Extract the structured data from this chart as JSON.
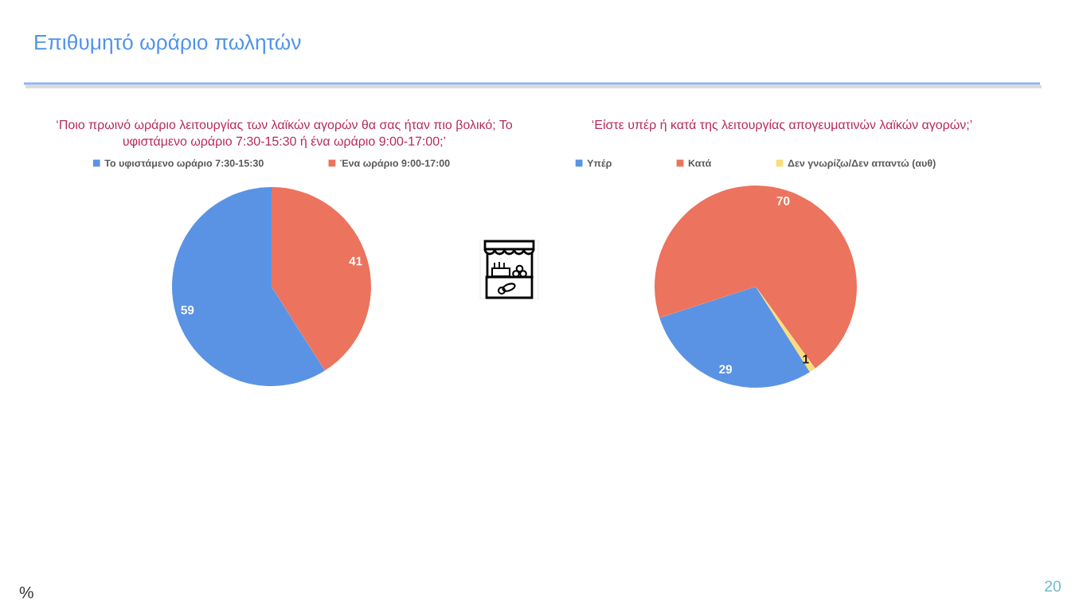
{
  "chart_data": [
    {
      "type": "pie",
      "title": "‘Ποιο πρωινό ωράριο λειτουργίας των λαϊκών αγορών θα σας ήταν πιο βολικό; Το\nυφιστάμενο ωράριο 7:30-15:30 ή ένα ωράριο 9:00-17:00;’",
      "categories": [
        "Το υφιστάμενο ωράριο 7:30-15:30",
        "Ένα ωράριο 9:00-17:00"
      ],
      "values": [
        59,
        41
      ],
      "colors": [
        "#5b93e4",
        "#ec735e"
      ],
      "data_labels": true,
      "legend": "top",
      "annotations": [
        "Επιθυμητό ωράριο πωλητών",
        "%",
        "20"
      ]
    },
    {
      "type": "pie",
      "title": "‘Είστε υπέρ ή κατά της λειτουργίας απογευματινών λαϊκών αγορών;’",
      "categories": [
        "Υπέρ",
        "Κατά",
        "Δεν γνωρίζω/Δεν απαντώ (αυθ)"
      ],
      "values": [
        29,
        70,
        1
      ],
      "colors": [
        "#5b93e4",
        "#ec735e",
        "#fcdd7c"
      ],
      "data_labels": true,
      "legend": "top"
    }
  ]
}
